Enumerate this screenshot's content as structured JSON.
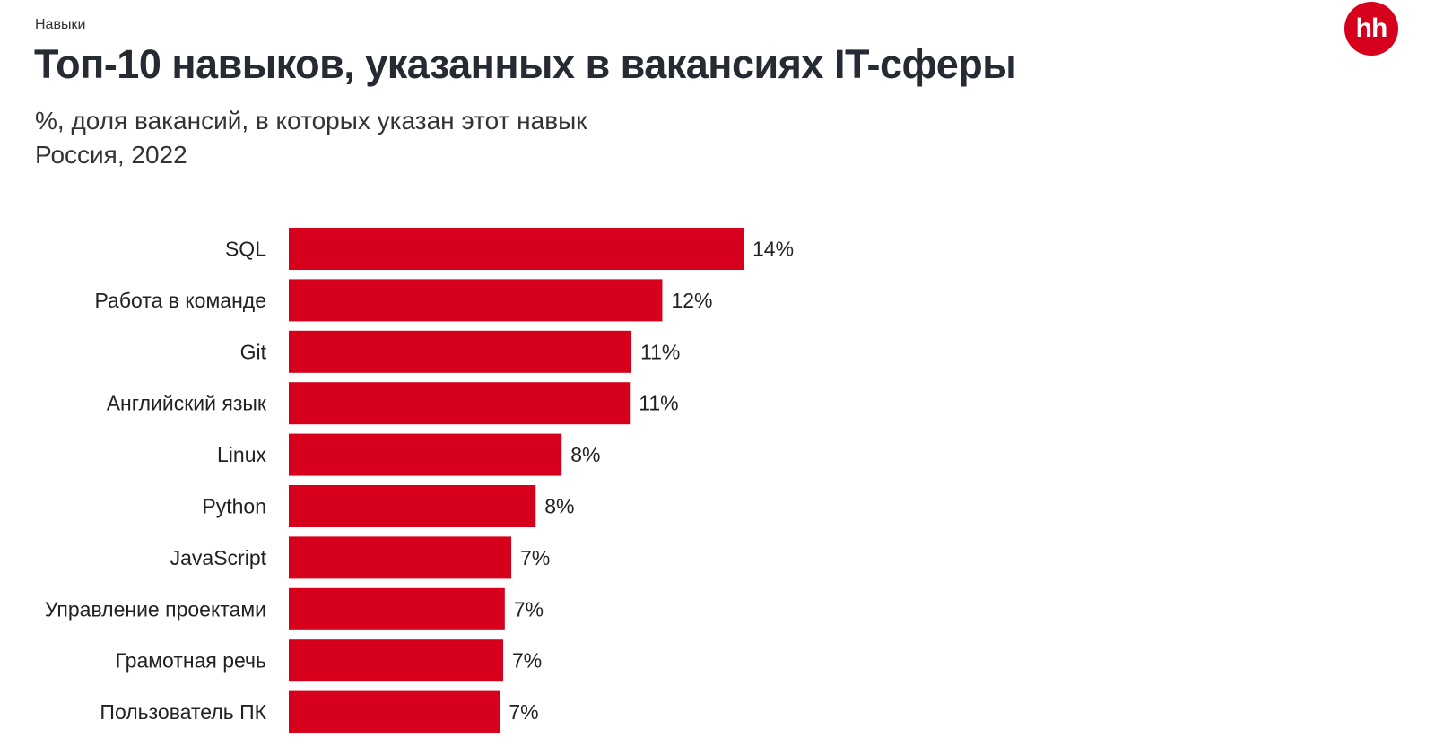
{
  "header": {
    "section": "Навыки",
    "logo_text": "hh"
  },
  "chart_data": {
    "type": "bar",
    "orientation": "horizontal",
    "title": "Топ-10 навыков, указанных в вакансиях IT-сферы",
    "subtitle": "%, доля вакансий, в которых указан этот навык",
    "subtitle2": "Россия, 2022",
    "categories": [
      "SQL",
      "Работа в команде",
      "Git",
      "Английский язык",
      "Linux",
      "Python",
      "JavaScript",
      "Управление проектами",
      "Грамотная речь",
      "Пользователь ПК"
    ],
    "values": [
      14,
      11.5,
      10.55,
      10.5,
      8.4,
      7.6,
      6.85,
      6.65,
      6.6,
      6.5
    ],
    "data_labels": [
      "14%",
      "12%",
      "11%",
      "11%",
      "8%",
      "8%",
      "7%",
      "7%",
      "7%",
      "7%"
    ],
    "xlim": [
      0,
      14
    ],
    "grid": false,
    "bar_color": "#d6001c",
    "logo_color": "#d6001c"
  }
}
